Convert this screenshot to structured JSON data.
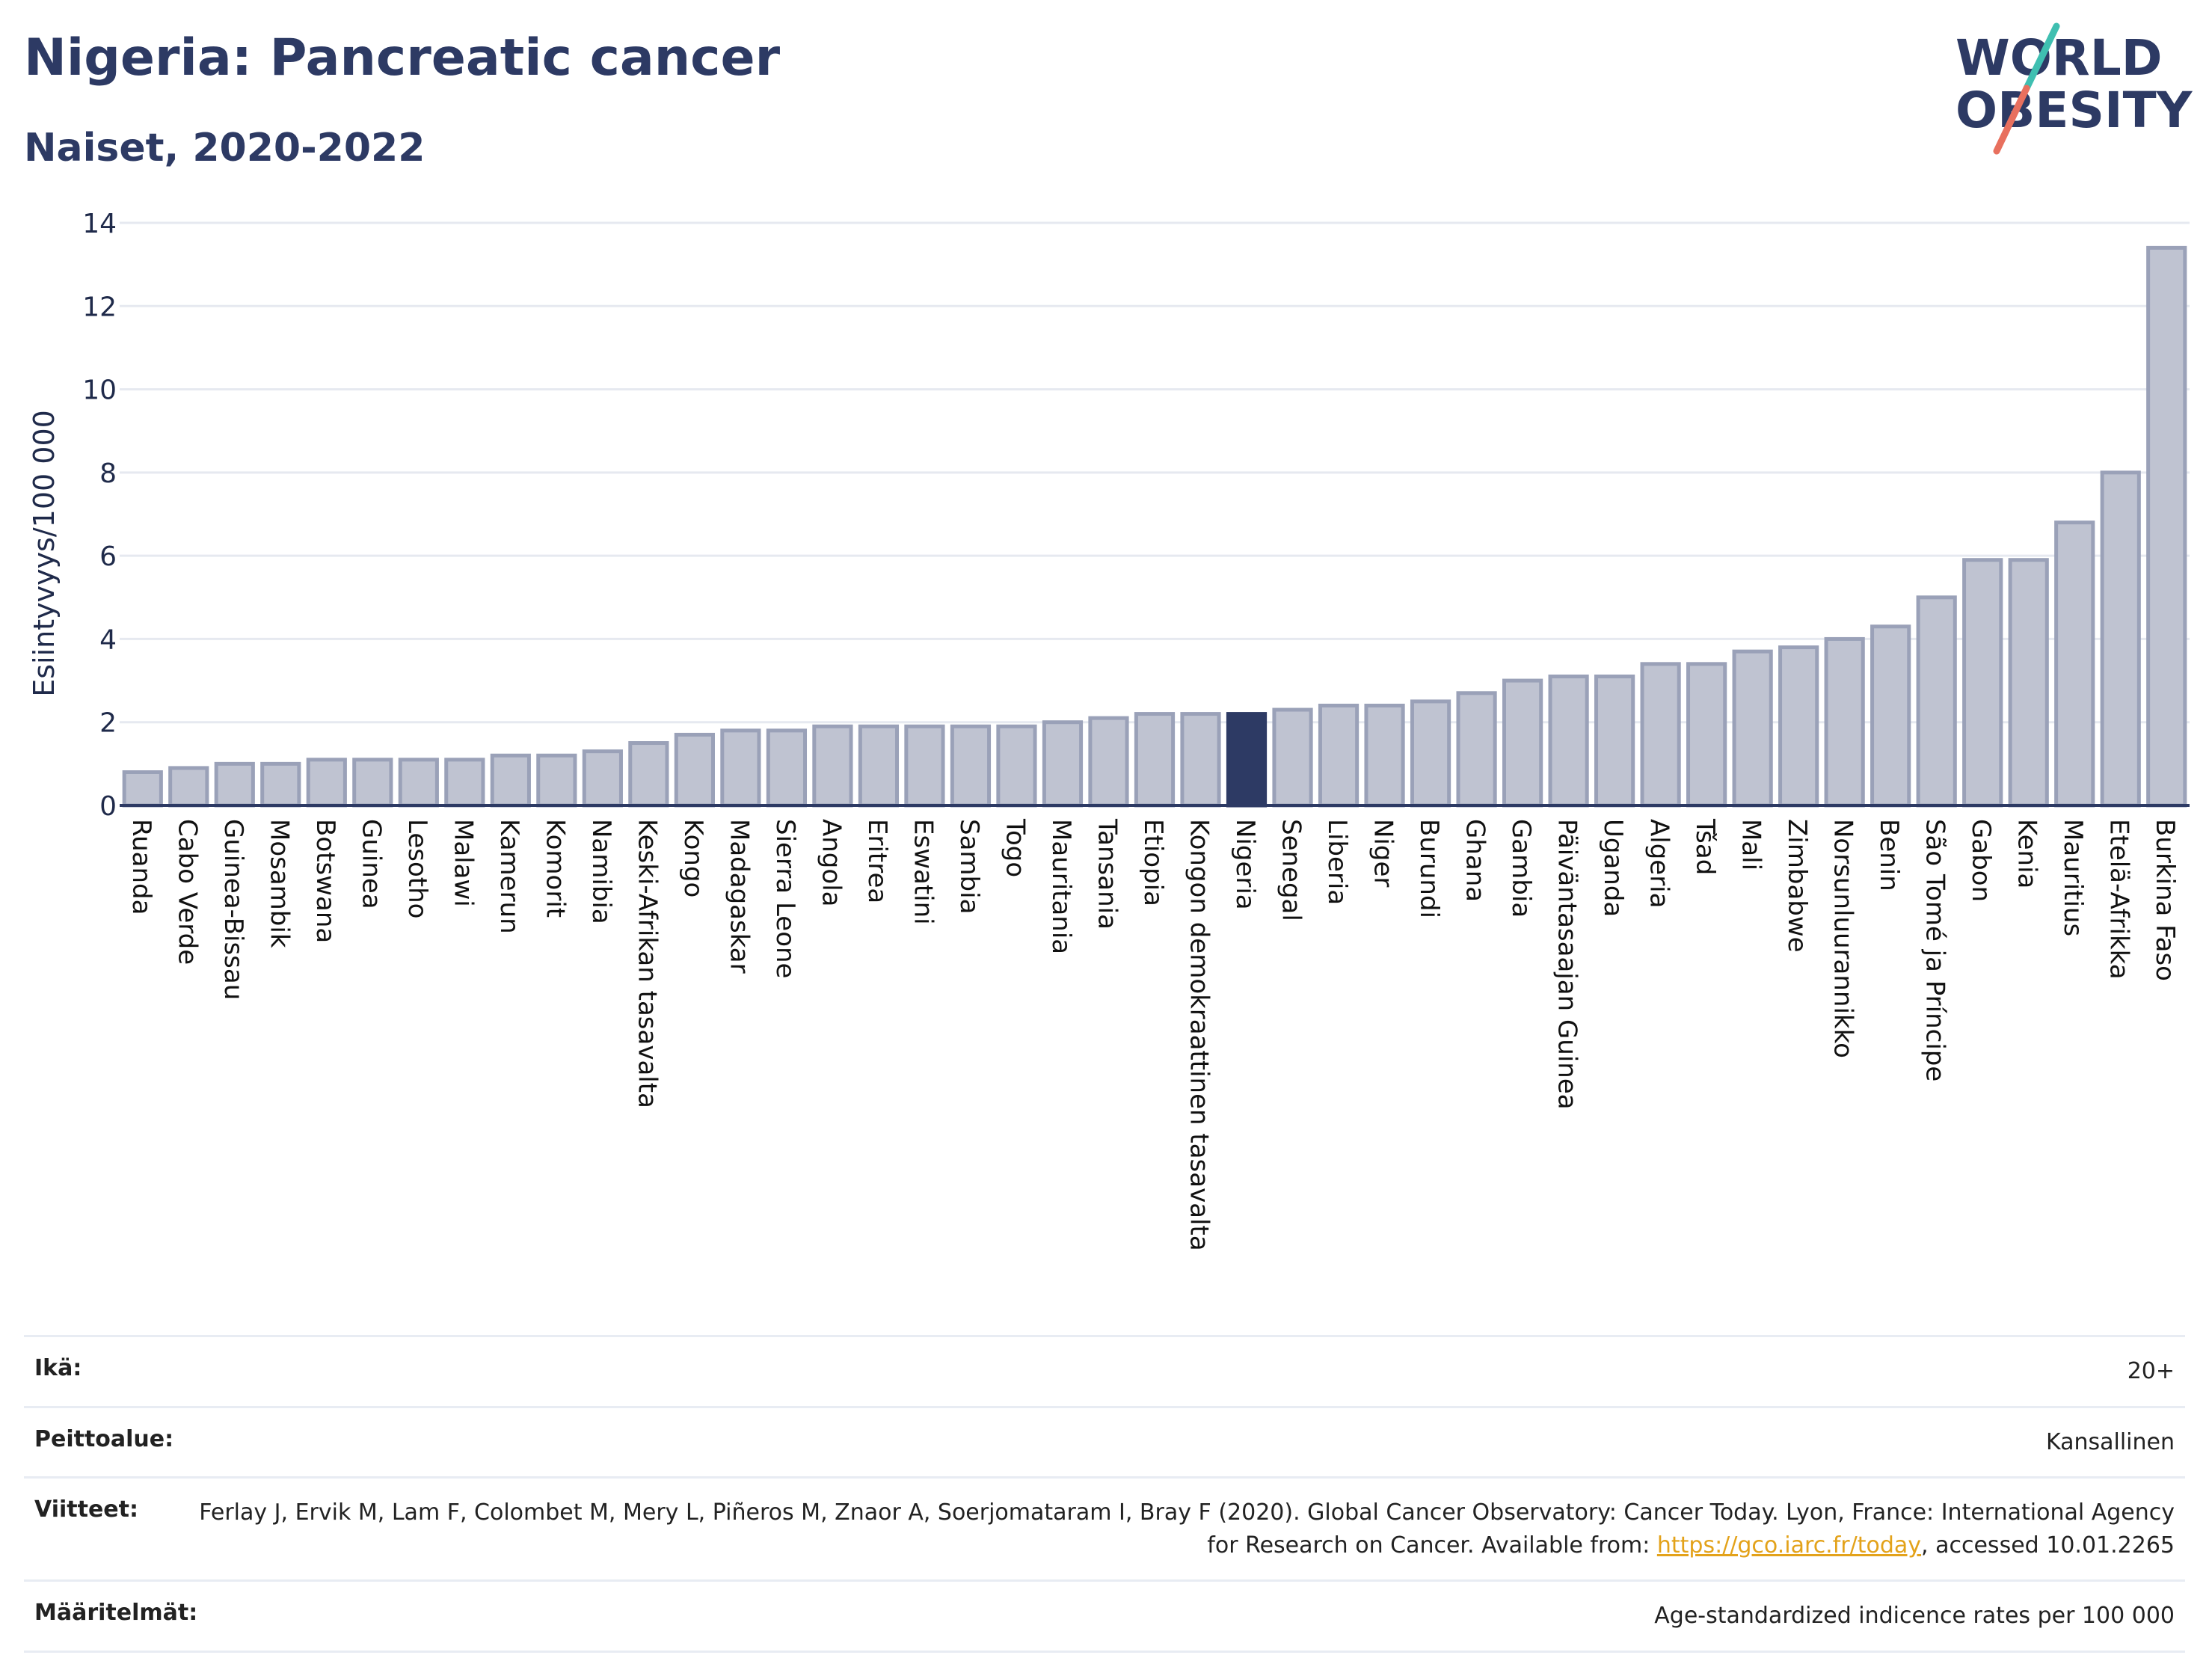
{
  "header": {
    "title": "Nigeria: Pancreatic cancer",
    "subtitle": "Naiset, 2020-2022"
  },
  "logo": {
    "line1": "WORLD",
    "line2": "OBESITY"
  },
  "colors": {
    "bar": "#bfc3d1",
    "bar_stroke": "#9aa1b8",
    "highlight": "#2d3a64",
    "axis": "#2d3a64",
    "grid": "#e6e9f0",
    "logo_text": "#2d3a64",
    "logo_teal": "#3fbfb1",
    "logo_red": "#e8705e",
    "link": "#e3a21a"
  },
  "chart_data": {
    "type": "bar",
    "title": "Nigeria: Pancreatic cancer",
    "subtitle": "Naiset, 2020-2022",
    "xlabel": "",
    "ylabel": "Esiintyvyys/100 000",
    "ylim": [
      0,
      14
    ],
    "yticks": [
      0,
      2,
      4,
      6,
      8,
      10,
      12,
      14
    ],
    "grid": true,
    "highlight": "Nigeria",
    "categories": [
      "Ruanda",
      "Cabo Verde",
      "Guinea-Bissau",
      "Mosambik",
      "Botswana",
      "Guinea",
      "Lesotho",
      "Malawi",
      "Kamerun",
      "Komorit",
      "Namibia",
      "Keski-Afrikan tasavalta",
      "Kongo",
      "Madagaskar",
      "Sierra Leone",
      "Angola",
      "Eritrea",
      "Eswatini",
      "Sambia",
      "Togo",
      "Mauritania",
      "Tansania",
      "Etiopia",
      "Kongon demokraattinen tasavalta",
      "Nigeria",
      "Senegal",
      "Liberia",
      "Niger",
      "Burundi",
      "Ghana",
      "Gambia",
      "Päiväntasaajan Guinea",
      "Uganda",
      "Algeria",
      "Tšad",
      "Mali",
      "Zimbabwe",
      "Norsunluurannikko",
      "Benin",
      "São Tomé ja Príncipe",
      "Gabon",
      "Kenia",
      "Mauritius",
      "Etelä-Afrikka",
      "Burkina Faso"
    ],
    "values": [
      0.8,
      0.9,
      1.0,
      1.0,
      1.1,
      1.1,
      1.1,
      1.1,
      1.2,
      1.2,
      1.3,
      1.5,
      1.7,
      1.8,
      1.8,
      1.9,
      1.9,
      1.9,
      1.9,
      1.9,
      2.0,
      2.1,
      2.2,
      2.2,
      2.2,
      2.3,
      2.4,
      2.4,
      2.5,
      2.7,
      3.0,
      3.1,
      3.1,
      3.4,
      3.4,
      3.7,
      3.8,
      4.0,
      4.3,
      5.0,
      5.9,
      5.9,
      6.8,
      8.0,
      13.4
    ]
  },
  "meta": {
    "age_label": "Ikä:",
    "age_value": "20+",
    "coverage_label": "Peittoalue:",
    "coverage_value": "Kansallinen",
    "refs_label": "Viitteet:",
    "refs_text_before": "Ferlay J, Ervik M, Lam F, Colombet M, Mery L, Piñeros M, Znaor A, Soerjomataram I, Bray F (2020). Global Cancer Observatory: Cancer Today. Lyon, France: International Agency for Research on Cancer. Available from: ",
    "refs_link": "https://gco.iarc.fr/today",
    "refs_text_after": ", accessed 10.01.2265",
    "defs_label": "Määritelmät:",
    "defs_value": "Age-standardized indicence rates per 100 000"
  }
}
